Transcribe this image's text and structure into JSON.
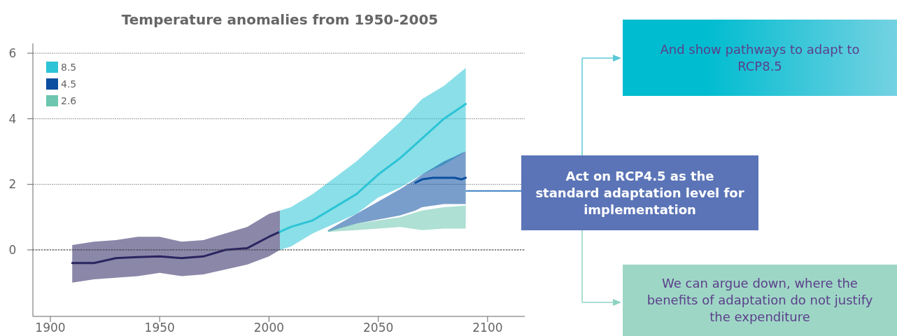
{
  "chart_data": {
    "type": "line",
    "title": "Temperature anomalies from 1950-2005",
    "xlim": [
      1892,
      2117
    ],
    "xticks": [
      1900,
      1950,
      2000,
      2050,
      2100
    ],
    "ylim": [
      -2.03,
      6.3
    ],
    "yticks": [
      0,
      2,
      4,
      6
    ],
    "grid": "y",
    "legend": "top left",
    "ref_lines": [
      {
        "axis": "y",
        "value": 0,
        "line_style": "dotted",
        "color": "#444444"
      }
    ],
    "annotations": [
      "And show pathways to adapt to RCP8.5",
      {
        "text": "Act on RCP4.5 as the standard adaptation level for implementation",
        "x": 2090,
        "y": 1.8
      },
      "We can argue down, where the benefits of adaptation do not justify the expenditure"
    ],
    "series": [
      {
        "color": "#2a2560",
        "x": [
          1910,
          1920,
          1930,
          1940,
          1950,
          1960,
          1970,
          1980,
          1990,
          2000,
          2005
        ],
        "values": [
          -0.4,
          -0.4,
          -0.25,
          -0.22,
          -0.2,
          -0.25,
          -0.2,
          0.0,
          0.05,
          0.4,
          0.55
        ],
        "lower": [
          -1.0,
          -0.9,
          -0.85,
          -0.8,
          -0.7,
          -0.8,
          -0.75,
          -0.6,
          -0.45,
          -0.2,
          0.0
        ],
        "upper": [
          0.15,
          0.25,
          0.3,
          0.4,
          0.4,
          0.25,
          0.3,
          0.5,
          0.7,
          1.1,
          1.2
        ]
      },
      {
        "name": "8.5",
        "color": "#2cc4d6",
        "x": [
          2005,
          2010,
          2020,
          2030,
          2040,
          2050,
          2060,
          2070,
          2080,
          2090
        ],
        "values": [
          0.55,
          0.7,
          0.9,
          1.3,
          1.7,
          2.3,
          2.8,
          3.4,
          4.0,
          4.45
        ],
        "lower": [
          0.0,
          0.1,
          0.5,
          0.8,
          1.1,
          1.6,
          1.9,
          2.3,
          2.6,
          3.0
        ],
        "upper": [
          1.2,
          1.3,
          1.7,
          2.2,
          2.7,
          3.3,
          3.9,
          4.6,
          5.0,
          5.55
        ]
      },
      {
        "name": "4.5",
        "color": "#0b4fa0",
        "x": [
          2027,
          2040,
          2060,
          2067,
          2070,
          2075,
          2080,
          2085,
          2088,
          2090
        ],
        "values": [
          null,
          null,
          null,
          2.05,
          2.15,
          2.2,
          2.2,
          2.2,
          2.15,
          2.2
        ],
        "lower": [
          0.55,
          0.8,
          1.05,
          1.2,
          1.3,
          1.35,
          1.4,
          1.4,
          1.4,
          1.4
        ],
        "upper": [
          0.6,
          1.1,
          1.85,
          2.15,
          2.3,
          2.5,
          2.7,
          2.85,
          2.95,
          3.0
        ]
      },
      {
        "name": "2.6",
        "color": "#6cc6b0",
        "x": [
          2027,
          2040,
          2060,
          2070,
          2080,
          2090
        ],
        "values": [
          null,
          null,
          null,
          null,
          null,
          null
        ],
        "lower": [
          0.55,
          0.6,
          0.7,
          0.6,
          0.65,
          0.65
        ],
        "upper": [
          0.6,
          0.8,
          1.0,
          1.2,
          1.3,
          1.35
        ]
      }
    ]
  }
}
